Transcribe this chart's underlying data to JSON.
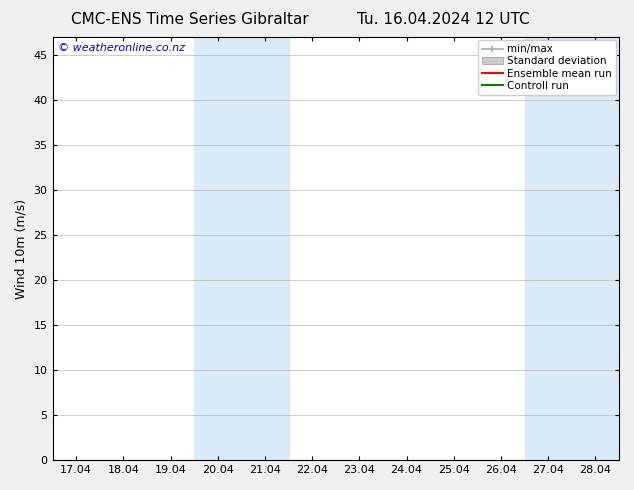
{
  "title_left": "CMC-ENS Time Series Gibraltar",
  "title_right": "Tu. 16.04.2024 12 UTC",
  "ylabel": "Wind 10m (m/s)",
  "watermark": "© weatheronline.co.nz",
  "ylim": [
    0,
    47
  ],
  "yticks": [
    0,
    5,
    10,
    15,
    20,
    25,
    30,
    35,
    40,
    45
  ],
  "xtick_labels": [
    "17.04",
    "18.04",
    "19.04",
    "20.04",
    "21.04",
    "22.04",
    "23.04",
    "24.04",
    "25.04",
    "26.04",
    "27.04",
    "28.04"
  ],
  "shaded_regions": [
    {
      "xstart": 3,
      "xend": 5,
      "color": "#daeaf6"
    },
    {
      "xstart": 10,
      "xend": 12,
      "color": "#daeaf6"
    }
  ],
  "bg_color": "#f0f0f0",
  "plot_bg_color": "#ffffff",
  "grid_color": "#bbbbbb",
  "spine_color": "#000000",
  "legend_entries": [
    {
      "label": "min/max",
      "type": "errorbar",
      "color": "#aaaaaa"
    },
    {
      "label": "Standard deviation",
      "type": "bar",
      "color": "#cccccc"
    },
    {
      "label": "Ensemble mean run",
      "type": "line",
      "color": "#ff0000"
    },
    {
      "label": "Controll run",
      "type": "line",
      "color": "#008000"
    }
  ],
  "title_fontsize": 11,
  "axis_fontsize": 9,
  "tick_fontsize": 8,
  "watermark_color": "#0000cc",
  "watermark_fontsize": 8,
  "legend_fontsize": 7.5
}
